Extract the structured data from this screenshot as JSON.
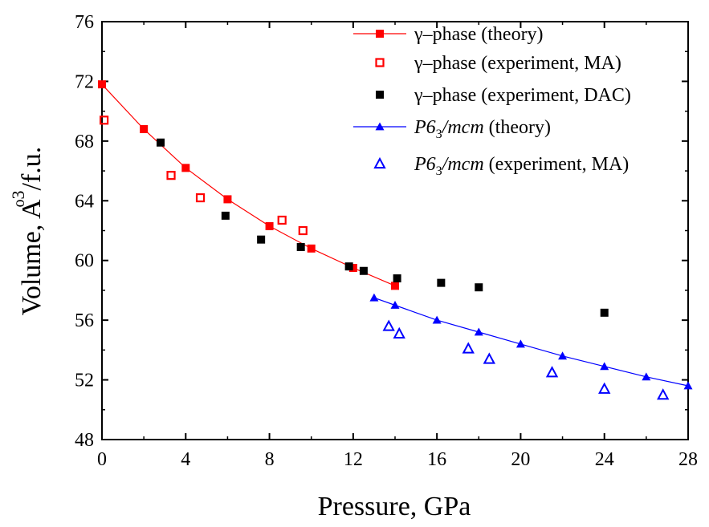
{
  "chart_data": {
    "type": "scatter",
    "title": "",
    "xlabel": "Pressure, GPa",
    "ylabel_parts": {
      "prefix": "Volume, ",
      "angstrom": "A",
      "ring": "o",
      "power": "3",
      "suffix": "/f.u."
    },
    "xlim": [
      0,
      28
    ],
    "ylim": [
      48,
      76
    ],
    "xticks": [
      0,
      4,
      8,
      12,
      16,
      20,
      24,
      28
    ],
    "yticks": [
      48,
      52,
      56,
      60,
      64,
      68,
      72,
      76
    ],
    "legend_position": "top-right",
    "series": [
      {
        "name": "γ–phase (theory)",
        "legend_parts": [
          "γ–phase (theory)"
        ],
        "color": "#ff0000",
        "marker": "filled-square",
        "line": true,
        "x": [
          0,
          2,
          4,
          6,
          8,
          10,
          12,
          14
        ],
        "y": [
          71.8,
          68.8,
          66.2,
          64.1,
          62.3,
          60.8,
          59.5,
          58.3
        ]
      },
      {
        "name": "γ–phase (experiment, MA)",
        "legend_parts": [
          "γ–phase (experiment, MA)"
        ],
        "color": "#ff0000",
        "marker": "open-square",
        "line": false,
        "x": [
          0.1,
          3.3,
          4.7,
          8.6,
          9.6
        ],
        "y": [
          69.4,
          65.7,
          64.2,
          62.7,
          62.0
        ]
      },
      {
        "name": "γ–phase (experiment, DAC)",
        "legend_parts": [
          "γ–phase (experiment, DAC)"
        ],
        "color": "#000000",
        "marker": "filled-square",
        "line": false,
        "x": [
          2.8,
          5.9,
          7.6,
          9.5,
          11.8,
          12.5,
          14.1,
          16.2,
          18.0,
          24.0
        ],
        "y": [
          67.9,
          63.0,
          61.4,
          60.9,
          59.6,
          59.3,
          58.8,
          58.5,
          58.2,
          56.5
        ]
      },
      {
        "name": "P63/mcm (theory)",
        "legend_parts": [
          "P6",
          "3",
          "/mcm",
          " (theory)"
        ],
        "color": "#0000ff",
        "marker": "filled-triangle",
        "line": true,
        "x": [
          13,
          14,
          16,
          18,
          20,
          22,
          24,
          26,
          28
        ],
        "y": [
          57.5,
          57.0,
          56.0,
          55.2,
          54.4,
          53.6,
          52.9,
          52.2,
          51.6
        ]
      },
      {
        "name": "P63/mcm (experiment, MA)",
        "legend_parts": [
          "P6",
          "3",
          "/mcm",
          " (experiment, MA)"
        ],
        "color": "#0000ff",
        "marker": "open-triangle",
        "line": false,
        "x": [
          13.7,
          14.2,
          17.5,
          18.5,
          21.5,
          24.0,
          26.8
        ],
        "y": [
          55.6,
          55.1,
          54.1,
          53.4,
          52.5,
          51.4,
          51.0
        ]
      }
    ]
  }
}
